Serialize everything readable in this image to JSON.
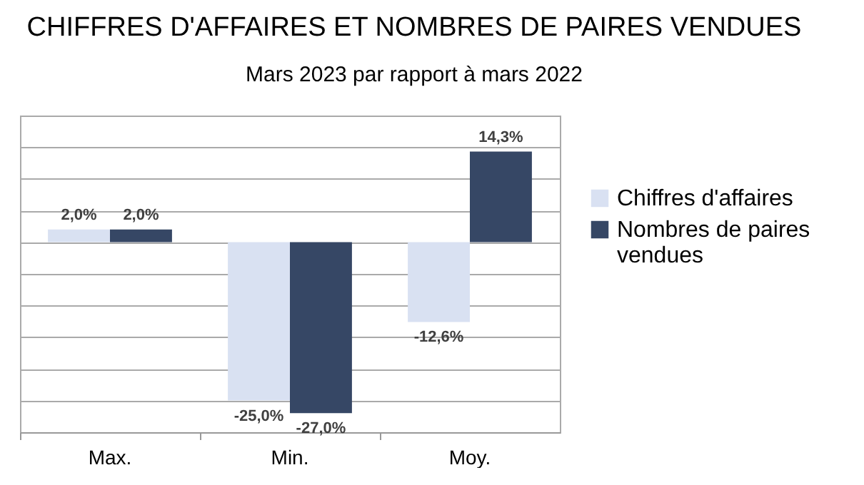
{
  "chart_data": {
    "type": "bar",
    "title": "CHIFFRES D'AFFAIRES ET NOMBRES DE PAIRES VENDUES",
    "subtitle": "Mars 2023 par rapport à mars 2022",
    "categories": [
      "Max.",
      "Min.",
      "Moy."
    ],
    "series": [
      {
        "name": "Chiffres d'affaires",
        "color": "#d9e1f2",
        "values": [
          2.0,
          -25.0,
          -12.6
        ],
        "value_labels": [
          "2,0%",
          "-25,0%",
          "-12,6%"
        ]
      },
      {
        "name": "Nombres de paires vendues",
        "color": "#364765",
        "values": [
          2.0,
          -27.0,
          14.3
        ],
        "value_labels": [
          "2,0%",
          "-27,0%",
          "14,3%"
        ]
      }
    ],
    "ylim": [
      -30,
      20
    ],
    "yticks": [
      {
        "value": -30,
        "label": null
      },
      {
        "value": -25,
        "label": null
      },
      {
        "value": -20,
        "label": null
      },
      {
        "value": -15,
        "label": null
      },
      {
        "value": -10,
        "label": null
      },
      {
        "value": -5,
        "label": null
      },
      {
        "value": 0,
        "label": null
      },
      {
        "value": 5,
        "label": null
      },
      {
        "value": 10,
        "label": null
      },
      {
        "value": 15,
        "label": null
      },
      {
        "value": 20,
        "label": null
      }
    ],
    "grid": "y",
    "tick_labels": "x",
    "legend": "right"
  }
}
